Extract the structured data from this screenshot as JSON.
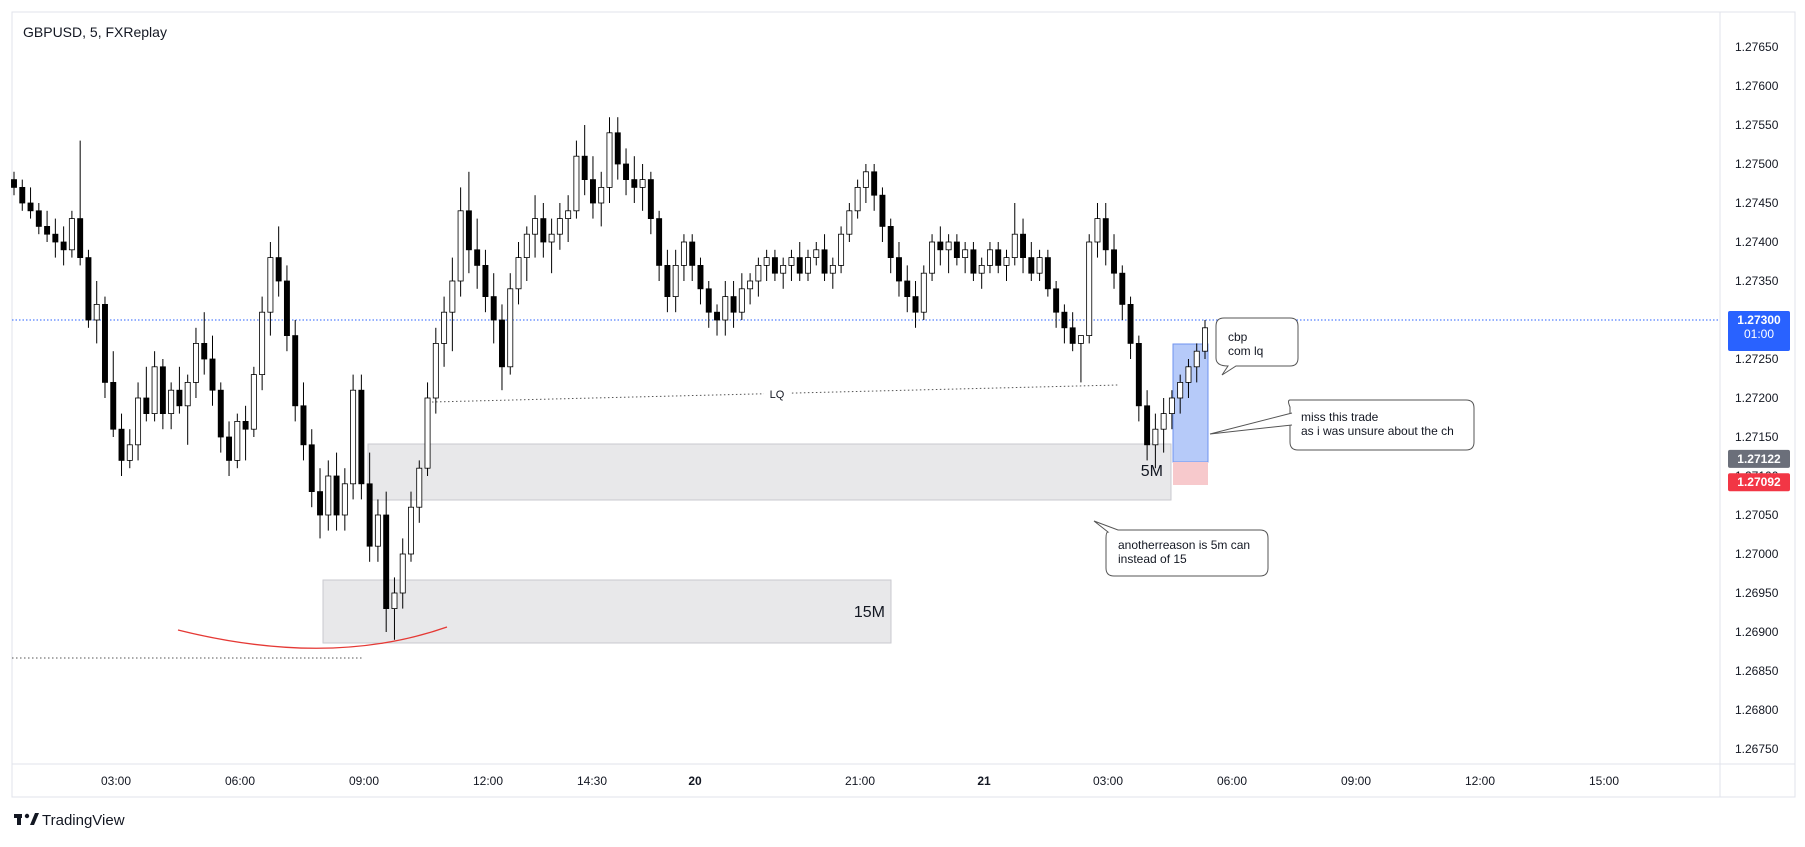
{
  "header": {
    "title": "GBPUSD, 5, FXReplay"
  },
  "footer": {
    "brand": "TradingView"
  },
  "colors": {
    "bull": "#ffffff",
    "bear": "#000000",
    "wick": "#000000",
    "price_line": "#2962ff",
    "current_badge": "#2962ff",
    "gray_badge": "#6b6f7a",
    "red_badge": "#f23645",
    "zone_fill": "#e8e8ea",
    "long_profit": "#9db8f7",
    "long_loss": "#f7c9cc",
    "arc": "#e53935"
  },
  "price_badges": {
    "current": {
      "value": "1.27300",
      "countdown": "01:00",
      "price": 1.273
    },
    "gray": {
      "value": "1.27122",
      "price": 1.27122
    },
    "red": {
      "value": "1.27092",
      "price": 1.27092
    }
  },
  "annotations": {
    "lq_label": "LQ",
    "zone_5m": "5M",
    "zone_15m": "15M",
    "note_cbp": [
      "cbp",
      "com lq"
    ],
    "note_miss": [
      "miss this trade",
      "as i was unsure about the ch"
    ],
    "note_another": [
      "anotherreason is 5m can",
      "instead of 15"
    ]
  },
  "chart_data": {
    "type": "candlestick",
    "symbol": "GBPUSD",
    "timeframe": "5",
    "source": "FXReplay",
    "ylim": [
      1.2672,
      1.2768
    ],
    "y_ticks": [
      "1.27650",
      "1.27600",
      "1.27550",
      "1.27500",
      "1.27450",
      "1.27400",
      "1.27350",
      "1.27300",
      "1.27250",
      "1.27200",
      "1.27150",
      "1.27100",
      "1.27050",
      "1.27000",
      "1.26950",
      "1.26900",
      "1.26850",
      "1.26800",
      "1.26750"
    ],
    "x_ticks": [
      {
        "label": "03:00",
        "bold": false
      },
      {
        "label": "06:00",
        "bold": false
      },
      {
        "label": "09:00",
        "bold": false
      },
      {
        "label": "12:00",
        "bold": false
      },
      {
        "label": "14:30",
        "bold": false
      },
      {
        "label": "20",
        "bold": true
      },
      {
        "label": "21:00",
        "bold": false
      },
      {
        "label": "21",
        "bold": true
      },
      {
        "label": "03:00",
        "bold": false
      },
      {
        "label": "06:00",
        "bold": false
      },
      {
        "label": "09:00",
        "bold": false
      },
      {
        "label": "12:00",
        "bold": false
      },
      {
        "label": "15:00",
        "bold": false
      }
    ],
    "candles": [
      [
        1.2748,
        1.2749,
        1.2746,
        1.2747
      ],
      [
        1.2747,
        1.2748,
        1.2744,
        1.2745
      ],
      [
        1.2745,
        1.2747,
        1.2743,
        1.2744
      ],
      [
        1.2744,
        1.2745,
        1.2741,
        1.2742
      ],
      [
        1.2742,
        1.2744,
        1.274,
        1.2741
      ],
      [
        1.2741,
        1.2743,
        1.2738,
        1.274
      ],
      [
        1.274,
        1.2742,
        1.2737,
        1.2739
      ],
      [
        1.2739,
        1.2744,
        1.2738,
        1.2743
      ],
      [
        1.2743,
        1.2753,
        1.2737,
        1.2738
      ],
      [
        1.2738,
        1.2739,
        1.2729,
        1.273
      ],
      [
        1.273,
        1.2735,
        1.2727,
        1.2732
      ],
      [
        1.2732,
        1.2733,
        1.272,
        1.2722
      ],
      [
        1.2722,
        1.2726,
        1.2715,
        1.2716
      ],
      [
        1.2716,
        1.2718,
        1.271,
        1.2712
      ],
      [
        1.2712,
        1.2716,
        1.2711,
        1.2714
      ],
      [
        1.2714,
        1.2722,
        1.2712,
        1.272
      ],
      [
        1.272,
        1.2724,
        1.2717,
        1.2718
      ],
      [
        1.2718,
        1.2726,
        1.2717,
        1.2724
      ],
      [
        1.2724,
        1.2725,
        1.2716,
        1.2718
      ],
      [
        1.2718,
        1.2722,
        1.2716,
        1.2721
      ],
      [
        1.2721,
        1.2724,
        1.2718,
        1.2719
      ],
      [
        1.2719,
        1.2723,
        1.2714,
        1.2722
      ],
      [
        1.2722,
        1.2729,
        1.272,
        1.2727
      ],
      [
        1.2727,
        1.2731,
        1.2723,
        1.2725
      ],
      [
        1.2725,
        1.2728,
        1.2719,
        1.2721
      ],
      [
        1.2721,
        1.2722,
        1.2713,
        1.2715
      ],
      [
        1.2715,
        1.2717,
        1.271,
        1.2712
      ],
      [
        1.2712,
        1.2718,
        1.2711,
        1.2717
      ],
      [
        1.2717,
        1.2719,
        1.2712,
        1.2716
      ],
      [
        1.2716,
        1.2724,
        1.2715,
        1.2723
      ],
      [
        1.2723,
        1.2733,
        1.2721,
        1.2731
      ],
      [
        1.2731,
        1.274,
        1.2728,
        1.2738
      ],
      [
        1.2738,
        1.2742,
        1.2733,
        1.2735
      ],
      [
        1.2735,
        1.2737,
        1.2726,
        1.2728
      ],
      [
        1.2728,
        1.273,
        1.2717,
        1.2719
      ],
      [
        1.2719,
        1.2722,
        1.2712,
        1.2714
      ],
      [
        1.2714,
        1.2716,
        1.2706,
        1.2708
      ],
      [
        1.2708,
        1.2711,
        1.2702,
        1.2705
      ],
      [
        1.2705,
        1.2712,
        1.2703,
        1.271
      ],
      [
        1.271,
        1.2713,
        1.2703,
        1.2705
      ],
      [
        1.2705,
        1.2711,
        1.2703,
        1.2709
      ],
      [
        1.2709,
        1.2723,
        1.2707,
        1.2721
      ],
      [
        1.2721,
        1.2723,
        1.2707,
        1.2709
      ],
      [
        1.2709,
        1.2713,
        1.2699,
        1.2701
      ],
      [
        1.2701,
        1.2707,
        1.2699,
        1.2705
      ],
      [
        1.2705,
        1.2708,
        1.269,
        1.2693
      ],
      [
        1.2693,
        1.2697,
        1.2689,
        1.2695
      ],
      [
        1.2695,
        1.2702,
        1.2693,
        1.27
      ],
      [
        1.27,
        1.2708,
        1.2699,
        1.2706
      ],
      [
        1.2706,
        1.2712,
        1.2704,
        1.2711
      ],
      [
        1.2711,
        1.2722,
        1.271,
        1.272
      ],
      [
        1.272,
        1.2729,
        1.2718,
        1.2727
      ],
      [
        1.2727,
        1.2733,
        1.2724,
        1.2731
      ],
      [
        1.2731,
        1.2738,
        1.2726,
        1.2735
      ],
      [
        1.2735,
        1.2747,
        1.2733,
        1.2744
      ],
      [
        1.2744,
        1.2749,
        1.2736,
        1.2739
      ],
      [
        1.2739,
        1.2743,
        1.2734,
        1.2737
      ],
      [
        1.2737,
        1.2739,
        1.2731,
        1.2733
      ],
      [
        1.2733,
        1.2736,
        1.2727,
        1.273
      ],
      [
        1.273,
        1.2732,
        1.2721,
        1.2724
      ],
      [
        1.2724,
        1.2736,
        1.2723,
        1.2734
      ],
      [
        1.2734,
        1.274,
        1.2732,
        1.2738
      ],
      [
        1.2738,
        1.2742,
        1.2735,
        1.2741
      ],
      [
        1.2741,
        1.2746,
        1.2738,
        1.2743
      ],
      [
        1.2743,
        1.2745,
        1.2738,
        1.274
      ],
      [
        1.274,
        1.2743,
        1.2736,
        1.2741
      ],
      [
        1.2741,
        1.2745,
        1.2739,
        1.2743
      ],
      [
        1.2743,
        1.2746,
        1.274,
        1.2744
      ],
      [
        1.2744,
        1.2753,
        1.2743,
        1.2751
      ],
      [
        1.2751,
        1.2755,
        1.2746,
        1.2748
      ],
      [
        1.2748,
        1.2751,
        1.2743,
        1.2745
      ],
      [
        1.2745,
        1.2749,
        1.2742,
        1.2747
      ],
      [
        1.2747,
        1.2756,
        1.2745,
        1.2754
      ],
      [
        1.2754,
        1.2756,
        1.2748,
        1.275
      ],
      [
        1.275,
        1.2752,
        1.2746,
        1.2748
      ],
      [
        1.2748,
        1.2751,
        1.2745,
        1.2747
      ],
      [
        1.2747,
        1.275,
        1.2744,
        1.2748
      ],
      [
        1.2748,
        1.2749,
        1.2741,
        1.2743
      ],
      [
        1.2743,
        1.2744,
        1.2735,
        1.2737
      ],
      [
        1.2737,
        1.2739,
        1.2731,
        1.2733
      ],
      [
        1.2733,
        1.2739,
        1.2731,
        1.2737
      ],
      [
        1.2737,
        1.2741,
        1.2735,
        1.274
      ],
      [
        1.274,
        1.2741,
        1.2735,
        1.2737
      ],
      [
        1.2737,
        1.2738,
        1.2732,
        1.2734
      ],
      [
        1.2734,
        1.2735,
        1.2729,
        1.2731
      ],
      [
        1.2731,
        1.2732,
        1.2728,
        1.273
      ],
      [
        1.273,
        1.2735,
        1.2728,
        1.2733
      ],
      [
        1.2733,
        1.2735,
        1.2729,
        1.2731
      ],
      [
        1.2731,
        1.2736,
        1.273,
        1.2734
      ],
      [
        1.2734,
        1.2736,
        1.2732,
        1.2735
      ],
      [
        1.2735,
        1.2738,
        1.2733,
        1.2737
      ],
      [
        1.2737,
        1.2739,
        1.2735,
        1.2738
      ],
      [
        1.2738,
        1.2739,
        1.2735,
        1.2736
      ],
      [
        1.2736,
        1.2738,
        1.2734,
        1.2737
      ],
      [
        1.2737,
        1.2739,
        1.2735,
        1.2738
      ],
      [
        1.2738,
        1.274,
        1.2735,
        1.2736
      ],
      [
        1.2736,
        1.2739,
        1.2735,
        1.2738
      ],
      [
        1.2738,
        1.274,
        1.2737,
        1.2739
      ],
      [
        1.2739,
        1.2741,
        1.2735,
        1.2736
      ],
      [
        1.2736,
        1.2738,
        1.2734,
        1.2737
      ],
      [
        1.2737,
        1.2742,
        1.2736,
        1.2741
      ],
      [
        1.2741,
        1.2745,
        1.274,
        1.2744
      ],
      [
        1.2744,
        1.2748,
        1.2743,
        1.2747
      ],
      [
        1.2747,
        1.275,
        1.2745,
        1.2749
      ],
      [
        1.2749,
        1.275,
        1.2744,
        1.2746
      ],
      [
        1.2746,
        1.2747,
        1.274,
        1.2742
      ],
      [
        1.2742,
        1.2743,
        1.2736,
        1.2738
      ],
      [
        1.2738,
        1.274,
        1.2733,
        1.2735
      ],
      [
        1.2735,
        1.2737,
        1.2731,
        1.2733
      ],
      [
        1.2733,
        1.2735,
        1.2729,
        1.2731
      ],
      [
        1.2731,
        1.2737,
        1.273,
        1.2736
      ],
      [
        1.2736,
        1.2741,
        1.2735,
        1.274
      ],
      [
        1.274,
        1.2742,
        1.2737,
        1.2739
      ],
      [
        1.2739,
        1.2741,
        1.2736,
        1.274
      ],
      [
        1.274,
        1.2741,
        1.2737,
        1.2738
      ],
      [
        1.2738,
        1.274,
        1.2736,
        1.2739
      ],
      [
        1.2739,
        1.274,
        1.2735,
        1.2736
      ],
      [
        1.2736,
        1.2738,
        1.2734,
        1.2737
      ],
      [
        1.2737,
        1.274,
        1.2736,
        1.2739
      ],
      [
        1.2739,
        1.274,
        1.2736,
        1.2737
      ],
      [
        1.2737,
        1.2739,
        1.2735,
        1.2738
      ],
      [
        1.2738,
        1.2745,
        1.2737,
        1.2741
      ],
      [
        1.2741,
        1.2743,
        1.2736,
        1.2738
      ],
      [
        1.2738,
        1.274,
        1.2735,
        1.2736
      ],
      [
        1.2736,
        1.2739,
        1.2735,
        1.2738
      ],
      [
        1.2738,
        1.2739,
        1.2733,
        1.2734
      ],
      [
        1.2734,
        1.2735,
        1.2729,
        1.2731
      ],
      [
        1.2731,
        1.2732,
        1.2727,
        1.2729
      ],
      [
        1.2729,
        1.2731,
        1.2726,
        1.2727
      ],
      [
        1.2727,
        1.2728,
        1.2722,
        1.2728
      ],
      [
        1.2728,
        1.2741,
        1.2727,
        1.274
      ],
      [
        1.274,
        1.2745,
        1.2738,
        1.2743
      ],
      [
        1.2743,
        1.2745,
        1.2737,
        1.2739
      ],
      [
        1.2739,
        1.2741,
        1.2734,
        1.2736
      ],
      [
        1.2736,
        1.2737,
        1.273,
        1.2732
      ],
      [
        1.2732,
        1.2733,
        1.2725,
        1.2727
      ],
      [
        1.2727,
        1.2728,
        1.2717,
        1.2719
      ],
      [
        1.2719,
        1.2721,
        1.2712,
        1.2714
      ],
      [
        1.2714,
        1.2718,
        1.2711,
        1.2716
      ],
      [
        1.2716,
        1.272,
        1.2713,
        1.2718
      ],
      [
        1.2718,
        1.2721,
        1.2716,
        1.272
      ],
      [
        1.272,
        1.2723,
        1.2718,
        1.2722
      ],
      [
        1.2722,
        1.2725,
        1.272,
        1.2724
      ],
      [
        1.2724,
        1.2727,
        1.2722,
        1.2726
      ],
      [
        1.2726,
        1.273,
        1.2725,
        1.2729
      ]
    ]
  }
}
